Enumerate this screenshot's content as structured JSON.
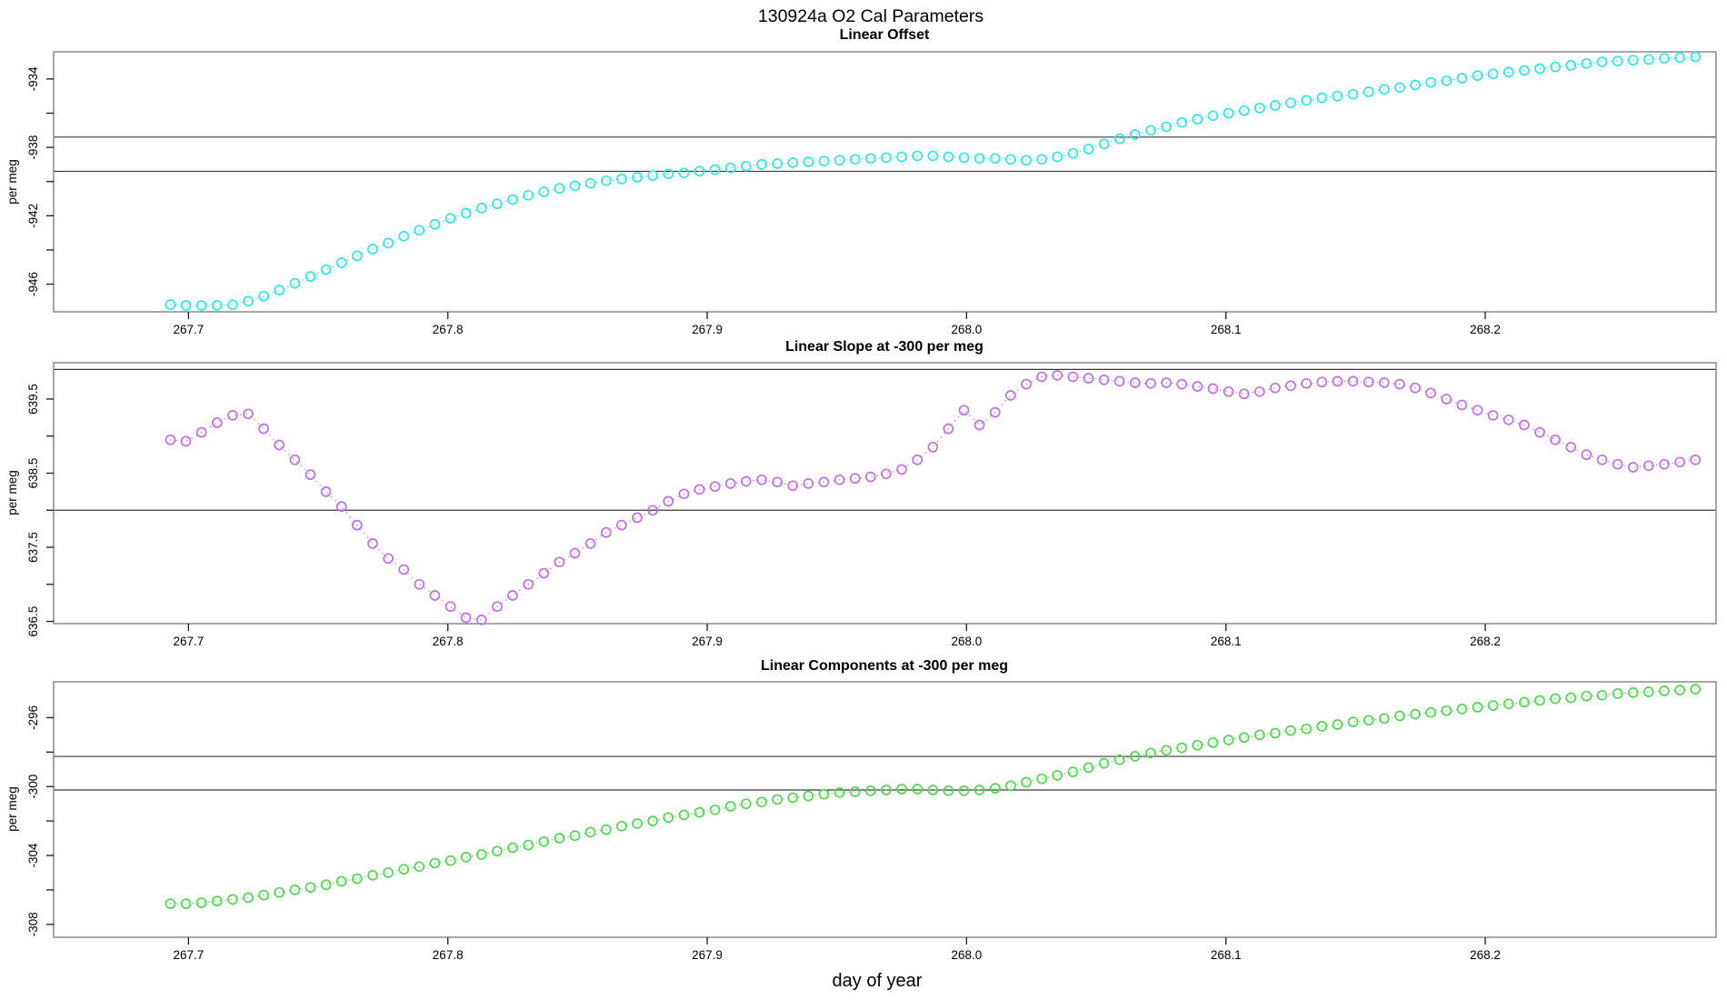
{
  "page": {
    "title": "130924a   O2 Cal Parameters",
    "background": "#ffffff"
  },
  "chart_data": {
    "type": "scatter",
    "title": "130924a   O2 Cal Parameters",
    "x_label": "day of year",
    "xlim": [
      267.648,
      268.289
    ],
    "x_ticks": [
      267.7,
      267.8,
      267.9,
      268.0,
      268.1,
      268.2
    ],
    "x_tick_labels": [
      "267.7",
      "267.8",
      "267.9",
      "268.0",
      "268.1",
      "268.2"
    ],
    "grid": "off",
    "legend": "none",
    "marker": "open-circle",
    "line_style": "dotted",
    "x": [
      267.693,
      267.699,
      267.705,
      267.711,
      267.717,
      267.723,
      267.729,
      267.735,
      267.741,
      267.747,
      267.753,
      267.759,
      267.765,
      267.771,
      267.777,
      267.783,
      267.789,
      267.795,
      267.801,
      267.807,
      267.813,
      267.819,
      267.825,
      267.831,
      267.837,
      267.843,
      267.849,
      267.855,
      267.861,
      267.867,
      267.873,
      267.879,
      267.885,
      267.891,
      267.897,
      267.903,
      267.909,
      267.915,
      267.921,
      267.927,
      267.933,
      267.939,
      267.945,
      267.951,
      267.957,
      267.963,
      267.969,
      267.975,
      267.981,
      267.987,
      267.993,
      267.999,
      268.005,
      268.011,
      268.017,
      268.023,
      268.029,
      268.035,
      268.041,
      268.047,
      268.053,
      268.059,
      268.065,
      268.071,
      268.077,
      268.083,
      268.089,
      268.095,
      268.101,
      268.107,
      268.113,
      268.119,
      268.125,
      268.131,
      268.137,
      268.143,
      268.149,
      268.155,
      268.161,
      268.167,
      268.173,
      268.179,
      268.185,
      268.191,
      268.197,
      268.203,
      268.209,
      268.215,
      268.221,
      268.227,
      268.233,
      268.239,
      268.245,
      268.251,
      268.257,
      268.263,
      268.269,
      268.275,
      268.281
    ],
    "panels": [
      {
        "title": "Linear Offset",
        "ylabel": "per meg",
        "color": "#2ee8e8",
        "ylim": [
          -947.62,
          -932.41
        ],
        "yticks": [
          -946,
          -944,
          -942,
          -940,
          -938,
          -936,
          -934
        ],
        "ytick_labels": [
          "-946",
          "",
          "-942",
          "",
          "-938",
          "",
          "-934"
        ],
        "ref_lines": [
          -937.4,
          -939.4
        ],
        "values": [
          -947.2,
          -947.25,
          -947.25,
          -947.25,
          -947.2,
          -947.0,
          -946.7,
          -946.35,
          -945.95,
          -945.55,
          -945.15,
          -944.75,
          -944.35,
          -943.95,
          -943.6,
          -943.2,
          -942.85,
          -942.5,
          -942.15,
          -941.85,
          -941.55,
          -941.3,
          -941.05,
          -940.8,
          -940.6,
          -940.4,
          -940.25,
          -940.1,
          -939.95,
          -939.85,
          -939.75,
          -939.65,
          -939.55,
          -939.5,
          -939.4,
          -939.3,
          -939.2,
          -939.1,
          -939.0,
          -938.95,
          -938.9,
          -938.85,
          -938.8,
          -938.75,
          -938.7,
          -938.65,
          -938.6,
          -938.55,
          -938.5,
          -938.5,
          -938.55,
          -938.6,
          -938.65,
          -938.65,
          -938.7,
          -938.75,
          -938.7,
          -938.55,
          -938.35,
          -938.1,
          -937.8,
          -937.5,
          -937.25,
          -937.0,
          -936.8,
          -936.55,
          -936.35,
          -936.15,
          -936.0,
          -935.85,
          -935.7,
          -935.55,
          -935.4,
          -935.25,
          -935.1,
          -935.0,
          -934.9,
          -934.75,
          -934.6,
          -934.5,
          -934.35,
          -934.2,
          -934.1,
          -933.95,
          -933.8,
          -933.7,
          -933.6,
          -933.5,
          -933.4,
          -933.3,
          -933.2,
          -933.1,
          -933.0,
          -932.95,
          -932.9,
          -932.85,
          -932.8,
          -932.75,
          -932.7
        ]
      },
      {
        "title": "Linear Slope at -300 per meg",
        "ylabel": "per meg",
        "color": "#c76cee",
        "ylim": [
          636.47,
          639.99
        ],
        "yticks": [
          636.5,
          637.0,
          637.5,
          638.0,
          638.5,
          639.0,
          639.5
        ],
        "ytick_labels": [
          "636.5",
          "",
          "637.5",
          "",
          "638.5",
          "",
          "639.5"
        ],
        "ref_lines": [
          639.9,
          638.0
        ],
        "values": [
          638.95,
          638.93,
          639.05,
          639.18,
          639.28,
          639.3,
          639.1,
          638.88,
          638.68,
          638.48,
          638.25,
          638.05,
          637.8,
          637.55,
          637.35,
          637.2,
          637.0,
          636.85,
          636.7,
          636.55,
          636.52,
          636.7,
          636.85,
          637.0,
          637.15,
          637.3,
          637.42,
          637.55,
          637.7,
          637.8,
          637.9,
          638.0,
          638.12,
          638.22,
          638.28,
          638.32,
          638.36,
          638.39,
          638.41,
          638.38,
          638.33,
          638.36,
          638.38,
          638.41,
          638.43,
          638.45,
          638.49,
          638.55,
          638.68,
          638.85,
          639.1,
          639.35,
          639.15,
          639.32,
          639.55,
          639.7,
          639.8,
          639.82,
          639.8,
          639.78,
          639.76,
          639.74,
          639.72,
          639.71,
          639.72,
          639.7,
          639.67,
          639.64,
          639.6,
          639.57,
          639.6,
          639.65,
          639.68,
          639.71,
          639.73,
          639.74,
          639.74,
          639.73,
          639.72,
          639.7,
          639.65,
          639.58,
          639.5,
          639.42,
          639.35,
          639.28,
          639.22,
          639.15,
          639.05,
          638.95,
          638.85,
          638.75,
          638.68,
          638.62,
          638.58,
          638.6,
          638.62,
          638.65,
          638.68
        ]
      },
      {
        "title": "Linear Components at -300 per meg",
        "ylabel": "per meg",
        "color": "#4ed94e",
        "ylim": [
          -308.75,
          -293.92
        ],
        "yticks": [
          -308,
          -306,
          -304,
          -302,
          -300,
          -298,
          -296
        ],
        "ytick_labels": [
          "-308",
          "",
          "-304",
          "",
          "-300",
          "",
          "-296"
        ],
        "ref_lines": [
          -298.25,
          -300.2
        ],
        "values": [
          -306.8,
          -306.8,
          -306.75,
          -306.65,
          -306.55,
          -306.45,
          -306.3,
          -306.15,
          -306.0,
          -305.85,
          -305.7,
          -305.5,
          -305.35,
          -305.15,
          -305.0,
          -304.8,
          -304.65,
          -304.45,
          -304.3,
          -304.1,
          -303.95,
          -303.75,
          -303.55,
          -303.4,
          -303.2,
          -303.0,
          -302.85,
          -302.65,
          -302.5,
          -302.3,
          -302.15,
          -302.0,
          -301.8,
          -301.65,
          -301.5,
          -301.35,
          -301.15,
          -301.0,
          -300.9,
          -300.75,
          -300.65,
          -300.55,
          -300.45,
          -300.35,
          -300.3,
          -300.25,
          -300.2,
          -300.15,
          -300.15,
          -300.2,
          -300.25,
          -300.25,
          -300.2,
          -300.1,
          -299.95,
          -299.75,
          -299.55,
          -299.35,
          -299.15,
          -298.9,
          -298.65,
          -298.45,
          -298.25,
          -298.05,
          -297.9,
          -297.75,
          -297.6,
          -297.45,
          -297.3,
          -297.15,
          -297.0,
          -296.9,
          -296.75,
          -296.65,
          -296.5,
          -296.4,
          -296.25,
          -296.15,
          -296.05,
          -295.9,
          -295.8,
          -295.7,
          -295.6,
          -295.5,
          -295.4,
          -295.3,
          -295.2,
          -295.1,
          -295.0,
          -294.9,
          -294.85,
          -294.75,
          -294.7,
          -294.6,
          -294.55,
          -294.5,
          -294.45,
          -294.4,
          -294.35
        ]
      }
    ],
    "colors": {
      "box": "#8a8a8a",
      "ref_line": "#3a3a3a",
      "tick": "#1a1a1a"
    }
  }
}
